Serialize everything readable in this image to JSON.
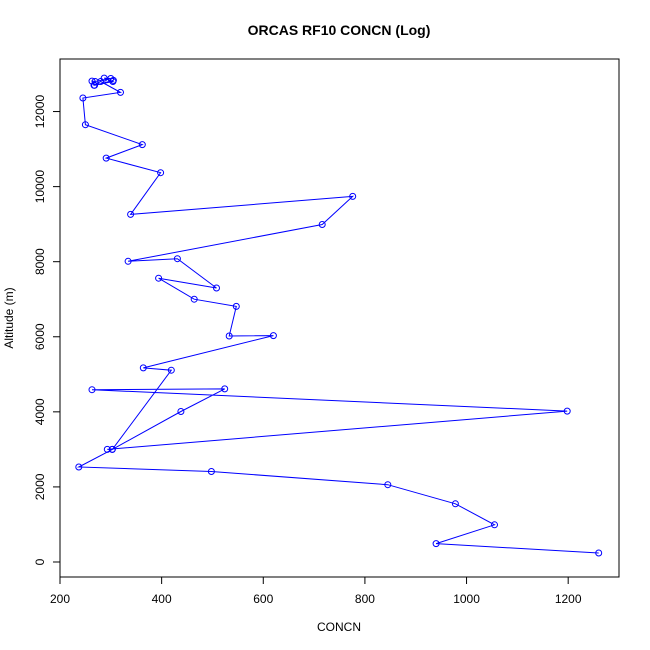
{
  "chart_data": {
    "type": "line",
    "title": "ORCAS RF10 CONCN (Log)",
    "xlabel": "CONCN",
    "ylabel": "Altitude (m)",
    "xlim": [
      200,
      1300
    ],
    "ylim": [
      -400,
      13400
    ],
    "x_ticks": [
      200,
      400,
      600,
      800,
      1000,
      1200
    ],
    "y_ticks": [
      0,
      2000,
      4000,
      6000,
      8000,
      10000,
      12000
    ],
    "x_tick_labels": [
      "200",
      "400",
      "600",
      "800",
      "1000",
      "1200"
    ],
    "y_tick_labels": [
      "0",
      "2000",
      "4000",
      "6000",
      "8000",
      "10000",
      "12000"
    ],
    "grid": false,
    "color": "#0000ff",
    "series": [
      {
        "marker": "open-circle",
        "points": [
          [
            1260,
            240
          ],
          [
            940,
            490
          ],
          [
            1055,
            990
          ],
          [
            978,
            1550
          ],
          [
            845,
            2060
          ],
          [
            498,
            2410
          ],
          [
            237,
            2530
          ],
          [
            303,
            3000
          ],
          [
            293,
            3000
          ],
          [
            1198,
            4020
          ],
          [
            263,
            4590
          ],
          [
            524,
            4610
          ],
          [
            438,
            4010
          ],
          [
            303,
            3000
          ],
          [
            419,
            5110
          ],
          [
            364,
            5170
          ],
          [
            620,
            6030
          ],
          [
            533,
            6020
          ],
          [
            547,
            6810
          ],
          [
            464,
            7000
          ],
          [
            394,
            7560
          ],
          [
            508,
            7300
          ],
          [
            431,
            8080
          ],
          [
            334,
            8010
          ],
          [
            716,
            8990
          ],
          [
            776,
            9740
          ],
          [
            339,
            9260
          ],
          [
            398,
            10370
          ],
          [
            291,
            10760
          ],
          [
            362,
            11120
          ],
          [
            250,
            11650
          ],
          [
            245,
            12360
          ],
          [
            319,
            12510
          ],
          [
            280,
            12800
          ],
          [
            267,
            12700
          ],
          [
            263,
            12810
          ],
          [
            269,
            12800
          ],
          [
            300,
            12880
          ],
          [
            287,
            12890
          ],
          [
            304,
            12800
          ],
          [
            268,
            12700
          ],
          [
            305,
            12830
          ]
        ]
      }
    ]
  }
}
